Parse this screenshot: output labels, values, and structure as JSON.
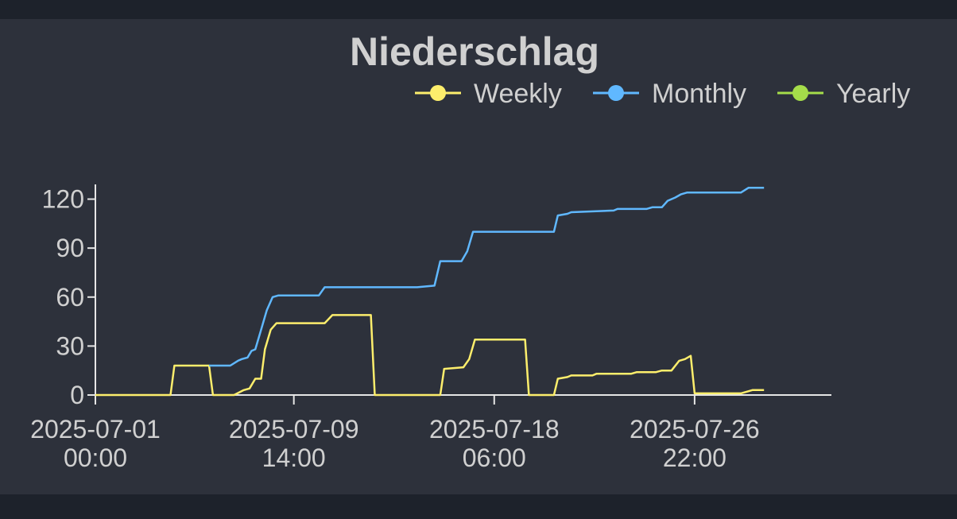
{
  "colors": {
    "page_background": "#1d222b",
    "panel_background": "#2d313b",
    "text": "#d0d0d0",
    "axis": "#e6e6e6",
    "weekly": "#fdee6c",
    "monthly": "#60b8ff",
    "yearly": "#a5dd4a"
  },
  "chart_data": {
    "type": "line",
    "title": "Niederschlag",
    "xlabel": "",
    "ylabel": "",
    "x_ticks": [
      {
        "x": "2025-07-01T00:00",
        "date": "2025-07-01",
        "time": "00:00"
      },
      {
        "x": "2025-07-09T14:00",
        "date": "2025-07-09",
        "time": "14:00"
      },
      {
        "x": "2025-07-18T06:00",
        "date": "2025-07-18",
        "time": "06:00"
      },
      {
        "x": "2025-07-26T22:00",
        "date": "2025-07-26",
        "time": "22:00"
      }
    ],
    "y_ticks": [
      0,
      30,
      60,
      90,
      120
    ],
    "xlim": [
      "2025-07-01T00:00",
      "2025-08-01T20:00"
    ],
    "ylim": [
      0,
      130
    ],
    "grid": false,
    "legend": "top-right",
    "series": [
      {
        "name": "Weekly",
        "color": "#fdee6c",
        "points": [
          [
            "2025-07-01T00:00",
            0
          ],
          [
            "2025-07-04T06:00",
            0
          ],
          [
            "2025-07-04T10:00",
            18
          ],
          [
            "2025-07-05T22:00",
            18
          ],
          [
            "2025-07-06T02:00",
            0
          ],
          [
            "2025-07-07T00:00",
            0
          ],
          [
            "2025-07-07T10:00",
            3
          ],
          [
            "2025-07-07T16:00",
            4
          ],
          [
            "2025-07-07T22:00",
            10
          ],
          [
            "2025-07-08T04:00",
            10
          ],
          [
            "2025-07-08T08:00",
            28
          ],
          [
            "2025-07-08T14:00",
            40
          ],
          [
            "2025-07-08T20:00",
            44
          ],
          [
            "2025-07-10T22:00",
            44
          ],
          [
            "2025-07-11T06:00",
            49
          ],
          [
            "2025-07-12T22:00",
            49
          ],
          [
            "2025-07-13T02:00",
            0
          ],
          [
            "2025-07-15T22:00",
            0
          ],
          [
            "2025-07-16T02:00",
            16
          ],
          [
            "2025-07-16T22:00",
            17
          ],
          [
            "2025-07-17T04:00",
            22
          ],
          [
            "2025-07-17T10:00",
            34
          ],
          [
            "2025-07-18T06:00",
            34
          ],
          [
            "2025-07-19T14:00",
            34
          ],
          [
            "2025-07-19T18:00",
            0
          ],
          [
            "2025-07-20T20:00",
            0
          ],
          [
            "2025-07-21T00:00",
            10
          ],
          [
            "2025-07-21T10:00",
            11
          ],
          [
            "2025-07-21T14:00",
            12
          ],
          [
            "2025-07-22T12:00",
            12
          ],
          [
            "2025-07-22T16:00",
            13
          ],
          [
            "2025-07-24T04:00",
            13
          ],
          [
            "2025-07-24T10:00",
            14
          ],
          [
            "2025-07-25T06:00",
            14
          ],
          [
            "2025-07-25T12:00",
            15
          ],
          [
            "2025-07-25T22:00",
            15
          ],
          [
            "2025-07-26T06:00",
            21
          ],
          [
            "2025-07-26T12:00",
            22
          ],
          [
            "2025-07-26T18:00",
            24
          ],
          [
            "2025-07-26T22:00",
            1
          ],
          [
            "2025-07-28T22:00",
            1
          ],
          [
            "2025-07-29T10:00",
            3
          ],
          [
            "2025-07-29T22:00",
            3
          ]
        ]
      },
      {
        "name": "Monthly",
        "color": "#60b8ff",
        "points": [
          [
            "2025-07-05T22:00",
            18
          ],
          [
            "2025-07-06T20:00",
            18
          ],
          [
            "2025-07-07T04:00",
            21
          ],
          [
            "2025-07-07T08:00",
            22
          ],
          [
            "2025-07-07T14:00",
            23
          ],
          [
            "2025-07-07T18:00",
            27
          ],
          [
            "2025-07-07T22:00",
            28
          ],
          [
            "2025-07-08T04:00",
            40
          ],
          [
            "2025-07-08T10:00",
            52
          ],
          [
            "2025-07-08T16:00",
            60
          ],
          [
            "2025-07-08T22:00",
            61
          ],
          [
            "2025-07-10T16:00",
            61
          ],
          [
            "2025-07-10T22:00",
            66
          ],
          [
            "2025-07-14T22:00",
            66
          ],
          [
            "2025-07-15T16:00",
            67
          ],
          [
            "2025-07-15T22:00",
            82
          ],
          [
            "2025-07-16T20:00",
            82
          ],
          [
            "2025-07-17T02:00",
            88
          ],
          [
            "2025-07-17T08:00",
            100
          ],
          [
            "2025-07-18T00:00",
            100
          ],
          [
            "2025-07-20T20:00",
            100
          ],
          [
            "2025-07-21T00:00",
            110
          ],
          [
            "2025-07-21T10:00",
            111
          ],
          [
            "2025-07-21T14:00",
            112
          ],
          [
            "2025-07-23T10:00",
            113
          ],
          [
            "2025-07-23T14:00",
            114
          ],
          [
            "2025-07-24T20:00",
            114
          ],
          [
            "2025-07-25T02:00",
            115
          ],
          [
            "2025-07-25T12:00",
            115
          ],
          [
            "2025-07-25T18:00",
            119
          ],
          [
            "2025-07-26T02:00",
            121
          ],
          [
            "2025-07-26T08:00",
            123
          ],
          [
            "2025-07-26T14:00",
            124
          ],
          [
            "2025-07-28T22:00",
            124
          ],
          [
            "2025-07-29T06:00",
            127
          ],
          [
            "2025-07-29T22:00",
            127
          ]
        ]
      },
      {
        "name": "Yearly",
        "color": "#a5dd4a",
        "points": []
      }
    ]
  }
}
